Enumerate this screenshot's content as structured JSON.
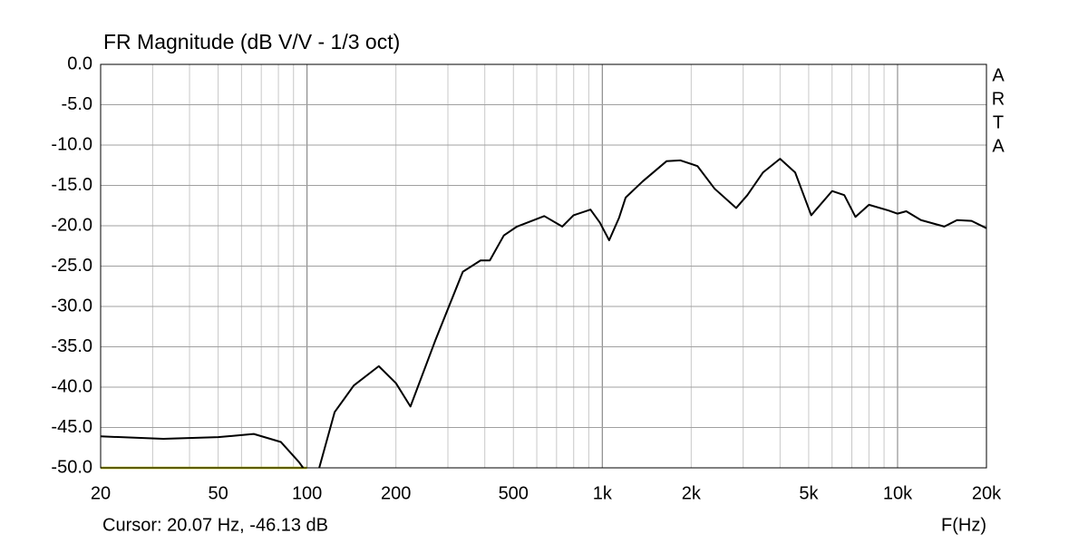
{
  "chart_data": {
    "type": "line",
    "title": "FR Magnitude (dB V/V - 1/3 oct)",
    "xlabel": "F(Hz)",
    "cursor_text": "Cursor: 20.07 Hz, -46.13 dB",
    "watermark_letters": [
      "A",
      "R",
      "T",
      "A"
    ],
    "xscale": "log",
    "grid": true,
    "xlim": [
      20,
      20000
    ],
    "ylim": [
      -50,
      0
    ],
    "xticks": [
      20,
      50,
      100,
      200,
      500,
      {
        "value": 1000,
        "label": "1k"
      },
      {
        "value": 2000,
        "label": "2k"
      },
      {
        "value": 5000,
        "label": "5k"
      },
      {
        "value": 10000,
        "label": "10k"
      },
      {
        "value": 20000,
        "label": "20k"
      }
    ],
    "x_decade_gridlines": [
      100,
      1000,
      10000
    ],
    "x_minor_gridlines": [
      30,
      40,
      60,
      70,
      80,
      90,
      300,
      400,
      600,
      700,
      800,
      900,
      3000,
      4000,
      6000,
      7000,
      8000,
      9000
    ],
    "yticks": [
      {
        "value": 0,
        "label": "0.0"
      },
      {
        "value": -5,
        "label": "-5.0"
      },
      {
        "value": -10,
        "label": "-10.0"
      },
      {
        "value": -15,
        "label": "-15.0"
      },
      {
        "value": -20,
        "label": "-20.0"
      },
      {
        "value": -25,
        "label": "-25.0"
      },
      {
        "value": -30,
        "label": "-30.0"
      },
      {
        "value": -35,
        "label": "-35.0"
      },
      {
        "value": -40,
        "label": "-40.0"
      },
      {
        "value": -45,
        "label": "-45.0"
      },
      {
        "value": -50,
        "label": "-50.0"
      }
    ],
    "series": [
      {
        "color": "#000000",
        "x": [
          20,
          32.6,
          50,
          66,
          81.6,
          94,
          97,
          103,
          110,
          124,
          144,
          175,
          200,
          224,
          272,
          337,
          387,
          416,
          464,
          514,
          636,
          732,
          799,
          912,
          981,
          1055,
          1140,
          1200,
          1370,
          1650,
          1840,
          2100,
          2400,
          2840,
          3100,
          3500,
          4000,
          4500,
          5100,
          6000,
          6600,
          7200,
          8000,
          9300,
          10000,
          10700,
          12000,
          14400,
          15900,
          17800,
          20000
        ],
        "values": [
          -46.1,
          -46.4,
          -46.2,
          -45.8,
          -46.8,
          -49.3,
          -50,
          null,
          -50,
          -43.1,
          -39.8,
          -37.4,
          -39.5,
          -42.4,
          -34.2,
          -25.7,
          -24.3,
          -24.3,
          -21.2,
          -20.1,
          -18.8,
          -20.1,
          -18.7,
          -18.0,
          -19.6,
          -21.8,
          -19.0,
          -16.5,
          -14.5,
          -12.0,
          -11.9,
          -12.6,
          -15.4,
          -17.8,
          -16.2,
          -13.4,
          -11.7,
          -13.4,
          -18.7,
          -15.7,
          -16.2,
          -18.9,
          -17.4,
          -18.1,
          -18.5,
          -18.2,
          -19.3,
          -20.1,
          -19.3,
          -19.4,
          -20.3
        ]
      },
      {
        "color": "#b8b800",
        "x": [
          20,
          100
        ],
        "values": [
          -50,
          -50
        ]
      }
    ]
  }
}
